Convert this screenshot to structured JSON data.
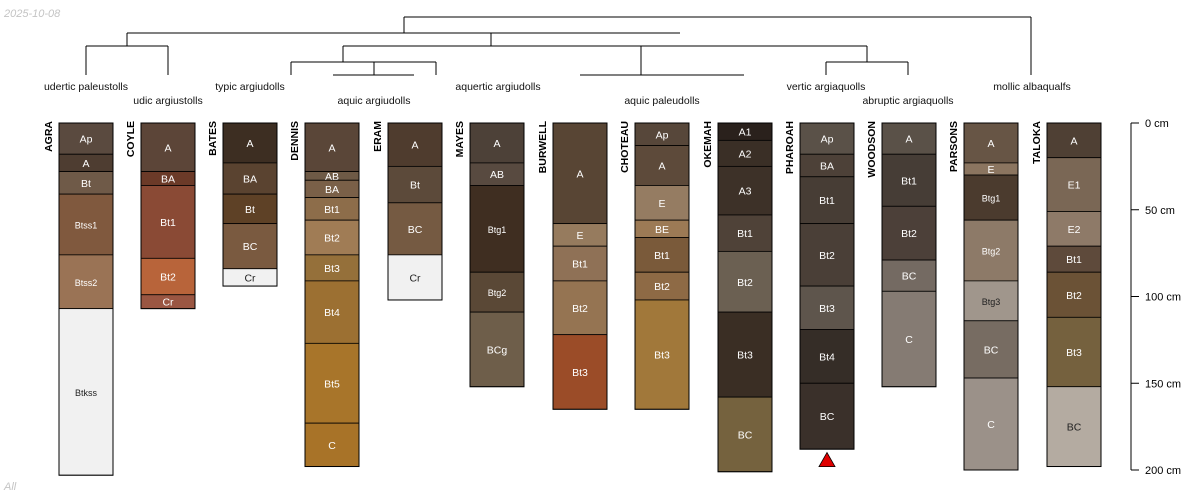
{
  "header": {
    "date": "2025-10-08"
  },
  "footer": {
    "note": "All"
  },
  "chart_data": {
    "type": "soil-profile-sketch",
    "depth_axis": {
      "unit": "cm",
      "ticks": [
        0,
        50,
        100,
        150,
        200
      ],
      "labels": [
        "0 cm",
        "50 cm",
        "100 cm",
        "150 cm",
        "200 cm"
      ],
      "range": [
        0,
        200
      ]
    },
    "subgroup_labels": [
      "udertic paleustolls",
      "udic argiustolls",
      "typic argiudolls",
      "aquic argiudolls",
      "aquertic argiudolls",
      "aquic paleudolls",
      "vertic argiaquolls",
      "abruptic argiaquolls",
      "mollic albaqualfs"
    ],
    "profiles": [
      {
        "id": "AGRA",
        "horizons": [
          {
            "name": "Ap",
            "top": 0,
            "bottom": 18,
            "color": "#5a4a3f"
          },
          {
            "name": "A",
            "top": 18,
            "bottom": 28,
            "color": "#4e3d31"
          },
          {
            "name": "Bt",
            "top": 28,
            "bottom": 41,
            "color": "#6f5a48"
          },
          {
            "name": "Btss1",
            "top": 41,
            "bottom": 76,
            "color": "#80593e"
          },
          {
            "name": "Btss2",
            "top": 76,
            "bottom": 107,
            "color": "#9a7355"
          },
          {
            "name": "Btkss",
            "top": 107,
            "bottom": 203,
            "color": "#f1f1f1"
          }
        ]
      },
      {
        "id": "COYLE",
        "horizons": [
          {
            "name": "A",
            "top": 0,
            "bottom": 28,
            "color": "#5c4538"
          },
          {
            "name": "BA",
            "top": 28,
            "bottom": 36,
            "color": "#6b3a28"
          },
          {
            "name": "Bt1",
            "top": 36,
            "bottom": 78,
            "color": "#8a4a35"
          },
          {
            "name": "Bt2",
            "top": 78,
            "bottom": 99,
            "color": "#b8643a"
          },
          {
            "name": "Cr",
            "top": 99,
            "bottom": 107,
            "color": "#9a5642"
          }
        ]
      },
      {
        "id": "BATES",
        "horizons": [
          {
            "name": "A",
            "top": 0,
            "bottom": 23,
            "color": "#3d2e22"
          },
          {
            "name": "BA",
            "top": 23,
            "bottom": 41,
            "color": "#5a4330"
          },
          {
            "name": "Bt",
            "top": 41,
            "bottom": 58,
            "color": "#5e4126"
          },
          {
            "name": "BC",
            "top": 58,
            "bottom": 84,
            "color": "#7a5a40"
          },
          {
            "name": "Cr",
            "top": 84,
            "bottom": 94,
            "color": "#f1f1f1"
          }
        ]
      },
      {
        "id": "DENNIS",
        "horizons": [
          {
            "name": "A",
            "top": 0,
            "bottom": 28,
            "color": "#5a4638"
          },
          {
            "name": "AB",
            "top": 28,
            "bottom": 33,
            "color": "#6e5a46"
          },
          {
            "name": "BA",
            "top": 33,
            "bottom": 43,
            "color": "#7a6048"
          },
          {
            "name": "Bt1",
            "top": 43,
            "bottom": 56,
            "color": "#8d6d4a"
          },
          {
            "name": "Bt2",
            "top": 56,
            "bottom": 76,
            "color": "#a07c55"
          },
          {
            "name": "Bt3",
            "top": 76,
            "bottom": 91,
            "color": "#95703a"
          },
          {
            "name": "Bt4",
            "top": 91,
            "bottom": 127,
            "color": "#9c7032"
          },
          {
            "name": "Bt5",
            "top": 127,
            "bottom": 173,
            "color": "#a8752a"
          },
          {
            "name": "C",
            "top": 173,
            "bottom": 198,
            "color": "#a87328"
          }
        ]
      },
      {
        "id": "ERAM",
        "horizons": [
          {
            "name": "A",
            "top": 0,
            "bottom": 25,
            "color": "#4f3c2e"
          },
          {
            "name": "Bt",
            "top": 25,
            "bottom": 46,
            "color": "#5c4a3a"
          },
          {
            "name": "BC",
            "top": 46,
            "bottom": 76,
            "color": "#755a42"
          },
          {
            "name": "Cr",
            "top": 76,
            "bottom": 102,
            "color": "#f1f1f1"
          }
        ]
      },
      {
        "id": "MAYES",
        "horizons": [
          {
            "name": "A",
            "top": 0,
            "bottom": 23,
            "color": "#4d4138"
          },
          {
            "name": "AB",
            "top": 23,
            "bottom": 36,
            "color": "#584a40"
          },
          {
            "name": "Btg1",
            "top": 36,
            "bottom": 86,
            "color": "#3f2e21"
          },
          {
            "name": "Btg2",
            "top": 86,
            "bottom": 109,
            "color": "#5a4836"
          },
          {
            "name": "BCg",
            "top": 109,
            "bottom": 152,
            "color": "#6e5e4a"
          }
        ]
      },
      {
        "id": "BURWELL",
        "horizons": [
          {
            "name": "A",
            "top": 0,
            "bottom": 58,
            "color": "#584534"
          },
          {
            "name": "E",
            "top": 58,
            "bottom": 71,
            "color": "#967b5e"
          },
          {
            "name": "Bt1",
            "top": 71,
            "bottom": 91,
            "color": "#8f7156"
          },
          {
            "name": "Bt2",
            "top": 91,
            "bottom": 122,
            "color": "#957452"
          },
          {
            "name": "Bt3",
            "top": 122,
            "bottom": 165,
            "color": "#9b4c28"
          }
        ]
      },
      {
        "id": "CHOTEAU",
        "horizons": [
          {
            "name": "Ap",
            "top": 0,
            "bottom": 13,
            "color": "#57473a"
          },
          {
            "name": "A",
            "top": 13,
            "bottom": 36,
            "color": "#5d4a3a"
          },
          {
            "name": "E",
            "top": 36,
            "bottom": 56,
            "color": "#957c62"
          },
          {
            "name": "BE",
            "top": 56,
            "bottom": 66,
            "color": "#9c7a55"
          },
          {
            "name": "Bt1",
            "top": 66,
            "bottom": 86,
            "color": "#7a5a3a"
          },
          {
            "name": "Bt2",
            "top": 86,
            "bottom": 102,
            "color": "#8e6a45"
          },
          {
            "name": "Bt3",
            "top": 102,
            "bottom": 165,
            "color": "#a1783a"
          }
        ]
      },
      {
        "id": "OKEMAH",
        "horizons": [
          {
            "name": "A1",
            "top": 0,
            "bottom": 10,
            "color": "#2a211c"
          },
          {
            "name": "A2",
            "top": 10,
            "bottom": 25,
            "color": "#3a2f26"
          },
          {
            "name": "A3",
            "top": 25,
            "bottom": 53,
            "color": "#3d3128"
          },
          {
            "name": "Bt1",
            "top": 53,
            "bottom": 74,
            "color": "#4f4238"
          },
          {
            "name": "Bt2",
            "top": 74,
            "bottom": 109,
            "color": "#6b6052"
          },
          {
            "name": "Bt3",
            "top": 109,
            "bottom": 158,
            "color": "#3a2e24"
          },
          {
            "name": "BC",
            "top": 158,
            "bottom": 201,
            "color": "#75623e"
          }
        ]
      },
      {
        "id": "PHAROAH",
        "horizons": [
          {
            "name": "Ap",
            "top": 0,
            "bottom": 18,
            "color": "#5a5148"
          },
          {
            "name": "BA",
            "top": 18,
            "bottom": 31,
            "color": "#4d4138"
          },
          {
            "name": "Bt1",
            "top": 31,
            "bottom": 58,
            "color": "#473d35"
          },
          {
            "name": "Bt2",
            "top": 58,
            "bottom": 94,
            "color": "#4a3f37"
          },
          {
            "name": "Bt3",
            "top": 94,
            "bottom": 119,
            "color": "#5e554c"
          },
          {
            "name": "Bt4",
            "top": 119,
            "bottom": 150,
            "color": "#352d27"
          },
          {
            "name": "BC",
            "top": 150,
            "bottom": 188,
            "color": "#3a302a"
          }
        ]
      },
      {
        "id": "WOODSON",
        "horizons": [
          {
            "name": "A",
            "top": 0,
            "bottom": 18,
            "color": "#5a5148"
          },
          {
            "name": "Bt1",
            "top": 18,
            "bottom": 48,
            "color": "#463d36"
          },
          {
            "name": "Bt2",
            "top": 48,
            "bottom": 79,
            "color": "#4c4039"
          },
          {
            "name": "BC",
            "top": 79,
            "bottom": 97,
            "color": "#746a62"
          },
          {
            "name": "C",
            "top": 97,
            "bottom": 152,
            "color": "#857b73"
          }
        ]
      },
      {
        "id": "PARSONS",
        "horizons": [
          {
            "name": "A",
            "top": 0,
            "bottom": 23,
            "color": "#675545"
          },
          {
            "name": "E",
            "top": 23,
            "bottom": 30,
            "color": "#8b7560"
          },
          {
            "name": "Btg1",
            "top": 30,
            "bottom": 56,
            "color": "#4b3b2e"
          },
          {
            "name": "Btg2",
            "top": 56,
            "bottom": 91,
            "color": "#8d7a68"
          },
          {
            "name": "Btg3",
            "top": 91,
            "bottom": 114,
            "color": "#a0968c"
          },
          {
            "name": "BC",
            "top": 114,
            "bottom": 147,
            "color": "#776c62"
          },
          {
            "name": "C",
            "top": 147,
            "bottom": 200,
            "color": "#9b9189"
          }
        ]
      },
      {
        "id": "TALOKA",
        "horizons": [
          {
            "name": "A",
            "top": 0,
            "bottom": 20,
            "color": "#4f4034"
          },
          {
            "name": "E1",
            "top": 20,
            "bottom": 51,
            "color": "#7a6755"
          },
          {
            "name": "E2",
            "top": 51,
            "bottom": 71,
            "color": "#8e7a68"
          },
          {
            "name": "Bt1",
            "top": 71,
            "bottom": 86,
            "color": "#5e4a3b"
          },
          {
            "name": "Bt2",
            "top": 86,
            "bottom": 112,
            "color": "#6b5236"
          },
          {
            "name": "Bt3",
            "top": 112,
            "bottom": 152,
            "color": "#75613e"
          },
          {
            "name": "BC",
            "top": 152,
            "bottom": 198,
            "color": "#b4aba1"
          }
        ]
      }
    ],
    "marker": {
      "profile": "PHAROAH",
      "depth": 194,
      "shape": "triangle-up",
      "color": "#e00000"
    }
  }
}
